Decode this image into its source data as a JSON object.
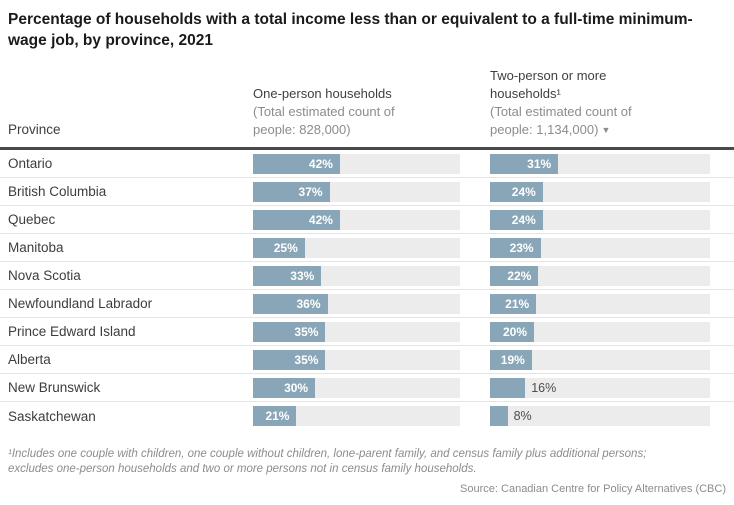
{
  "title": "Percentage of households with a total income less than or equivalent to a full-time minimum-wage job, by province, 2021",
  "table": {
    "province_header": "Province",
    "columns": [
      {
        "title": "One-person households",
        "subtitle": "(Total estimated count of people: 828,000)"
      },
      {
        "title": "Two-person or more households¹",
        "subtitle": "(Total estimated count of people: 1,134,000)",
        "sort_indicator": "▼"
      }
    ]
  },
  "chart_data": {
    "type": "bar",
    "categories": [
      "Ontario",
      "British Columbia",
      "Quebec",
      "Manitoba",
      "Nova Scotia",
      "Newfoundland Labrador",
      "Prince Edward Island",
      "Alberta",
      "New Brunswick",
      "Saskatchewan"
    ],
    "series": [
      {
        "name": "One-person households",
        "total_estimated_count": "828,000",
        "values": [
          42,
          37,
          42,
          25,
          33,
          36,
          35,
          35,
          30,
          21
        ]
      },
      {
        "name": "Two-person or more households",
        "total_estimated_count": "1,134,000",
        "values": [
          31,
          24,
          24,
          23,
          22,
          21,
          20,
          19,
          16,
          8
        ]
      }
    ],
    "value_suffix": "%",
    "xlim": [
      0,
      100
    ],
    "legend": "none",
    "grid": "off"
  },
  "colors": {
    "bar": "#89a6b8",
    "track": "#ececec",
    "header_rule": "#4a4a4a",
    "row_separator": "#e4e4e4",
    "inside_label": "#ffffff",
    "outside_label": "#4d4d4d"
  },
  "footnote_lines": [
    "¹Includes one couple with children, one couple without children, lone-parent family, and census family plus additional persons;",
    "excludes one-person households and two or more persons not in census family households."
  ],
  "source": "Source: Canadian Centre for Policy Alternatives (CBC)"
}
